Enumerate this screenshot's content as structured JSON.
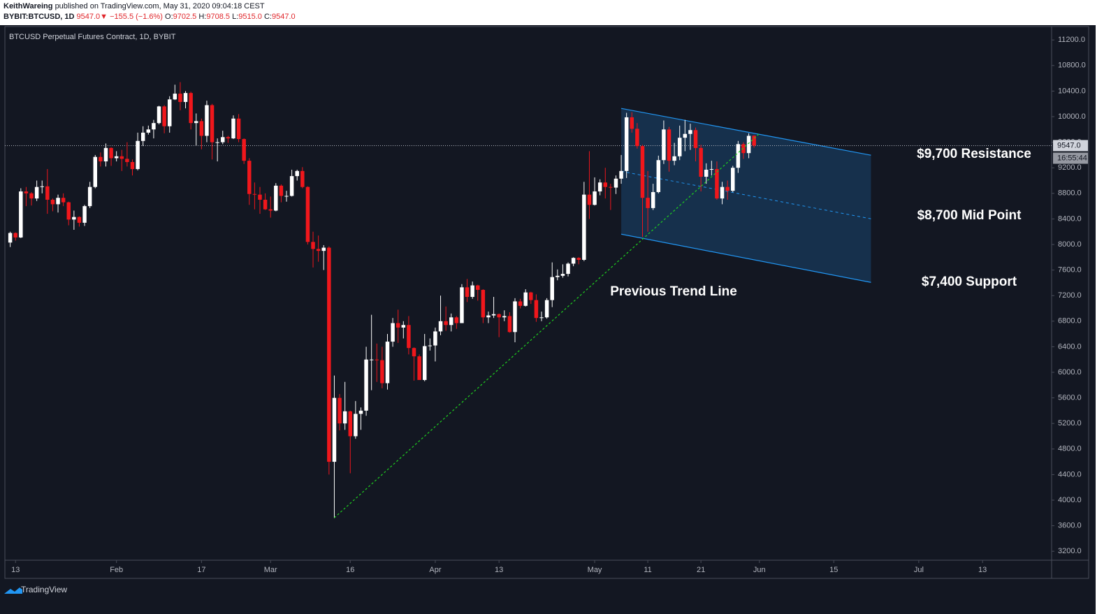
{
  "header": {
    "author": "KeithWareing",
    "published": "published on TradingView.com, May 31, 2020 09:04:18 CEST",
    "symbol": "BYBIT:BTCUSD, 1D",
    "last": "9547.0",
    "change": "▼ −155.5 (−1.6%)",
    "ohlc": [
      {
        "label": "O:",
        "value": "9702.5"
      },
      {
        "label": "H:",
        "value": "9708.5"
      },
      {
        "label": "L:",
        "value": "9515.0"
      },
      {
        "label": "C:",
        "value": "9547.0"
      }
    ]
  },
  "chart_data": {
    "type": "candlestick",
    "title": "BTCUSD Perpetual Futures Contract, 1D, BYBIT",
    "up_color": "#ffffff",
    "down_color": "#f0171c",
    "x": [
      "01-12",
      "01-13",
      "01-14",
      "01-15",
      "01-16",
      "01-17",
      "01-18",
      "01-19",
      "01-20",
      "01-21",
      "01-22",
      "01-23",
      "01-24",
      "01-25",
      "01-26",
      "01-27",
      "01-28",
      "01-29",
      "01-30",
      "01-31",
      "02-01",
      "02-02",
      "02-03",
      "02-04",
      "02-05",
      "02-06",
      "02-07",
      "02-08",
      "02-09",
      "02-10",
      "02-11",
      "02-12",
      "02-13",
      "02-14",
      "02-15",
      "02-16",
      "02-17",
      "02-18",
      "02-19",
      "02-20",
      "02-21",
      "02-22",
      "02-23",
      "02-24",
      "02-25",
      "02-26",
      "02-27",
      "02-28",
      "02-29",
      "03-01",
      "03-02",
      "03-03",
      "03-04",
      "03-05",
      "03-06",
      "03-07",
      "03-08",
      "03-09",
      "03-10",
      "03-11",
      "03-12",
      "03-13",
      "03-14",
      "03-15",
      "03-16",
      "03-17",
      "03-18",
      "03-19",
      "03-20",
      "03-21",
      "03-22",
      "03-23",
      "03-24",
      "03-25",
      "03-26",
      "03-27",
      "03-28",
      "03-29",
      "03-30",
      "03-31",
      "04-01",
      "04-02",
      "04-03",
      "04-04",
      "04-05",
      "04-06",
      "04-07",
      "04-08",
      "04-09",
      "04-10",
      "04-11",
      "04-12",
      "04-13",
      "04-14",
      "04-15",
      "04-16",
      "04-17",
      "04-18",
      "04-19",
      "04-20",
      "04-21",
      "04-22",
      "04-23",
      "04-24",
      "04-25",
      "04-26",
      "04-27",
      "04-28",
      "04-29",
      "04-30",
      "05-01",
      "05-02",
      "05-03",
      "05-04",
      "05-05",
      "05-06",
      "05-07",
      "05-08",
      "05-09",
      "05-10",
      "05-11",
      "05-12",
      "05-13",
      "05-14",
      "05-15",
      "05-16",
      "05-17",
      "05-18",
      "05-19",
      "05-20",
      "05-21",
      "05-22",
      "05-23",
      "05-24",
      "05-25",
      "05-26",
      "05-27",
      "05-28",
      "05-29",
      "05-30",
      "05-31"
    ],
    "open": [
      8030,
      8180,
      8110,
      8830,
      8800,
      8720,
      8900,
      8910,
      8700,
      8630,
      8730,
      8660,
      8390,
      8430,
      8340,
      8600,
      8900,
      9370,
      9300,
      9510,
      9350,
      9380,
      9340,
      9290,
      9180,
      9620,
      9750,
      9800,
      9900,
      10160,
      9850,
      10270,
      10360,
      10230,
      10370,
      9900,
      9930,
      9700,
      10180,
      9600,
      9600,
      9680,
      9660,
      9970,
      9650,
      9310,
      8790,
      8780,
      8700,
      8550,
      8530,
      8920,
      8760,
      8760,
      9070,
      9150,
      8900,
      8040,
      7930,
      7900,
      7950,
      4600,
      5600,
      5200,
      5390,
      5000,
      5350,
      5400,
      6200,
      6200,
      6190,
      5830,
      6480,
      6770,
      6700,
      6740,
      6380,
      6250,
      5880,
      6410,
      6420,
      6640,
      6800,
      6740,
      6860,
      6770,
      7330,
      7180,
      7360,
      7290,
      6860,
      6890,
      6910,
      6860,
      6880,
      6630,
      7110,
      7040,
      7250,
      7130,
      6850,
      6860,
      7130,
      7490,
      7510,
      7540,
      7700,
      7790,
      7760,
      8780,
      8620,
      8830,
      8970,
      8900,
      8890,
      9030,
      9150,
      9990,
      9810,
      9540,
      8730,
      8570,
      8820,
      9320,
      9800,
      9310,
      9380,
      9670,
      9730,
      9790,
      9510,
      9060,
      9170,
      9180,
      8720,
      8900,
      8840,
      9200,
      9570,
      9430,
      9702.5
    ],
    "high": [
      8200,
      8190,
      8880,
      8900,
      8820,
      9000,
      9000,
      9180,
      8720,
      8780,
      8800,
      8670,
      8530,
      8440,
      8620,
      8980,
      9400,
      9440,
      9580,
      9520,
      9460,
      9480,
      9600,
      9330,
      9750,
      9850,
      9860,
      9950,
      10170,
      10180,
      10320,
      10500,
      10540,
      10400,
      10390,
      10050,
      9970,
      10250,
      10200,
      9660,
      9780,
      9700,
      10020,
      10040,
      9660,
      9350,
      8970,
      8900,
      8800,
      8750,
      8960,
      8940,
      8840,
      9170,
      9170,
      9210,
      8910,
      8200,
      8140,
      7990,
      7970,
      5950,
      5660,
      5850,
      5400,
      5550,
      5450,
      6400,
      6900,
      6450,
      6400,
      6600,
      6850,
      6980,
      6800,
      6880,
      6390,
      6280,
      6600,
      6530,
      6700,
      7200,
      7030,
      6920,
      6880,
      7380,
      7460,
      7420,
      7370,
      7300,
      6950,
      7180,
      6920,
      6970,
      6940,
      7160,
      7150,
      7300,
      7260,
      7220,
      6950,
      7160,
      7720,
      7610,
      7690,
      7720,
      7800,
      7800,
      8980,
      9460,
      9050,
      9020,
      9200,
      8950,
      9080,
      9400,
      10060,
      10070,
      9900,
      9560,
      9150,
      8950,
      9390,
      9940,
      9840,
      9590,
      9860,
      9950,
      9890,
      9830,
      9560,
      9270,
      9310,
      9300,
      8980,
      9000,
      9230,
      9620,
      9600,
      9740,
      9708.5
    ],
    "low": [
      7960,
      8060,
      8100,
      8600,
      8610,
      8680,
      8800,
      8480,
      8520,
      8500,
      8600,
      8300,
      8230,
      8280,
      8290,
      8570,
      8880,
      9220,
      9220,
      9230,
      9300,
      9150,
      9220,
      9080,
      9160,
      9540,
      9720,
      9660,
      9880,
      9740,
      9750,
      10260,
      10100,
      10130,
      9800,
      9550,
      9490,
      9600,
      9330,
      9300,
      9570,
      9590,
      9650,
      9600,
      9260,
      8620,
      8550,
      8480,
      8540,
      8420,
      8520,
      8660,
      8670,
      8750,
      9000,
      8880,
      8000,
      7640,
      7730,
      7600,
      4400,
      3720,
      5090,
      5100,
      4420,
      4960,
      5100,
      5320,
      5720,
      5850,
      5750,
      5730,
      6400,
      6460,
      6530,
      6280,
      5870,
      5880,
      5860,
      6340,
      6170,
      6580,
      6650,
      6640,
      6680,
      6770,
      7100,
      7150,
      7120,
      6770,
      6770,
      6850,
      6550,
      6800,
      6620,
      6470,
      7000,
      7030,
      7070,
      6790,
      6800,
      6840,
      7020,
      7440,
      7480,
      7500,
      7660,
      7690,
      7740,
      8400,
      8610,
      8770,
      8720,
      8540,
      8790,
      8950,
      9040,
      9750,
      9500,
      8120,
      8200,
      8540,
      8800,
      9260,
      9140,
      9240,
      9320,
      9460,
      9480,
      9300,
      8830,
      8950,
      9080,
      8700,
      8630,
      8700,
      8820,
      9120,
      9340,
      9350,
      9515.0
    ],
    "close": [
      8180,
      8110,
      8830,
      8800,
      8720,
      8900,
      8910,
      8700,
      8630,
      8730,
      8660,
      8390,
      8430,
      8340,
      8600,
      8900,
      9370,
      9300,
      9510,
      9350,
      9380,
      9340,
      9290,
      9180,
      9620,
      9750,
      9800,
      9900,
      10160,
      9850,
      10270,
      10360,
      10230,
      10370,
      9900,
      9930,
      9700,
      10180,
      9600,
      9600,
      9680,
      9660,
      9970,
      9650,
      9310,
      8790,
      8780,
      8700,
      8550,
      8530,
      8920,
      8760,
      8760,
      9070,
      9150,
      8900,
      8040,
      7930,
      7900,
      7950,
      4600,
      5600,
      5200,
      5390,
      5000,
      5350,
      5400,
      6200,
      6200,
      6190,
      5830,
      6480,
      6770,
      6700,
      6740,
      6380,
      6250,
      5880,
      6410,
      6420,
      6640,
      6800,
      6740,
      6860,
      6770,
      7330,
      7180,
      7360,
      7290,
      6860,
      6890,
      6910,
      6860,
      6880,
      6630,
      7110,
      7040,
      7250,
      7130,
      6850,
      6860,
      7130,
      7490,
      7510,
      7540,
      7700,
      7790,
      7760,
      8780,
      8620,
      8830,
      8970,
      8900,
      8890,
      9030,
      9150,
      9990,
      9810,
      9540,
      8730,
      8570,
      8820,
      9320,
      9800,
      9310,
      9380,
      9670,
      9730,
      9790,
      9510,
      9060,
      9170,
      9180,
      8720,
      8900,
      8840,
      9200,
      9570,
      9430,
      9700,
      9547.0
    ],
    "xlim": [
      "01-11",
      "07-26"
    ],
    "xticks": [
      {
        "value": "01-13",
        "label": "13"
      },
      {
        "value": "02-01",
        "label": "Feb"
      },
      {
        "value": "02-17",
        "label": "17"
      },
      {
        "value": "03-01",
        "label": "Mar"
      },
      {
        "value": "03-16",
        "label": "16"
      },
      {
        "value": "04-01",
        "label": "Apr"
      },
      {
        "value": "04-13",
        "label": "13"
      },
      {
        "value": "05-01",
        "label": "May"
      },
      {
        "value": "05-11",
        "label": "11"
      },
      {
        "value": "05-21",
        "label": "21"
      },
      {
        "value": "06-01",
        "label": "Jun"
      },
      {
        "value": "06-15",
        "label": "15"
      },
      {
        "value": "07-01",
        "label": "Jul"
      },
      {
        "value": "07-13",
        "label": "13"
      }
    ],
    "ylim": [
      3060,
      11410
    ],
    "yticks": [
      {
        "value": 3200,
        "label": "3200.0"
      },
      {
        "value": 3600,
        "label": "3600.0"
      },
      {
        "value": 4000,
        "label": "4000.0"
      },
      {
        "value": 4400,
        "label": "4400.0"
      },
      {
        "value": 4800,
        "label": "4800.0"
      },
      {
        "value": 5200,
        "label": "5200.0"
      },
      {
        "value": 5600,
        "label": "5600.0"
      },
      {
        "value": 6000,
        "label": "6000.0"
      },
      {
        "value": 6400,
        "label": "6400.0"
      },
      {
        "value": 6800,
        "label": "6800.0"
      },
      {
        "value": 7200,
        "label": "7200.0"
      },
      {
        "value": 7600,
        "label": "7600.0"
      },
      {
        "value": 8000,
        "label": "8000.0"
      },
      {
        "value": 8400,
        "label": "8400.0"
      },
      {
        "value": 8800,
        "label": "8800.0"
      },
      {
        "value": 9200,
        "label": "9200.0"
      },
      {
        "value": 9600,
        "label": "9600.0"
      },
      {
        "value": 10000,
        "label": "10000.0"
      },
      {
        "value": 10400,
        "label": "10400.0"
      },
      {
        "value": 10800,
        "label": "10800.0"
      },
      {
        "value": 11200,
        "label": "11200.0"
      }
    ],
    "last_price_label": "9547.0",
    "countdown": "16:55:44",
    "channel": {
      "x": [
        "05-06",
        "06-22"
      ],
      "upper": [
        10129,
        9397
      ],
      "lower": [
        8161,
        7407
      ],
      "color": "#2196f3"
    },
    "trend_line": {
      "x": [
        "03-13",
        "06-01"
      ],
      "values": [
        3724,
        9735
      ],
      "color": "#1fd11f"
    },
    "annotations": [
      "$9,700 Resistance",
      "$8,700 Mid Point",
      "$7,400 Support",
      "Previous Trend Line"
    ]
  },
  "footer": {
    "brand": "TradingView"
  }
}
